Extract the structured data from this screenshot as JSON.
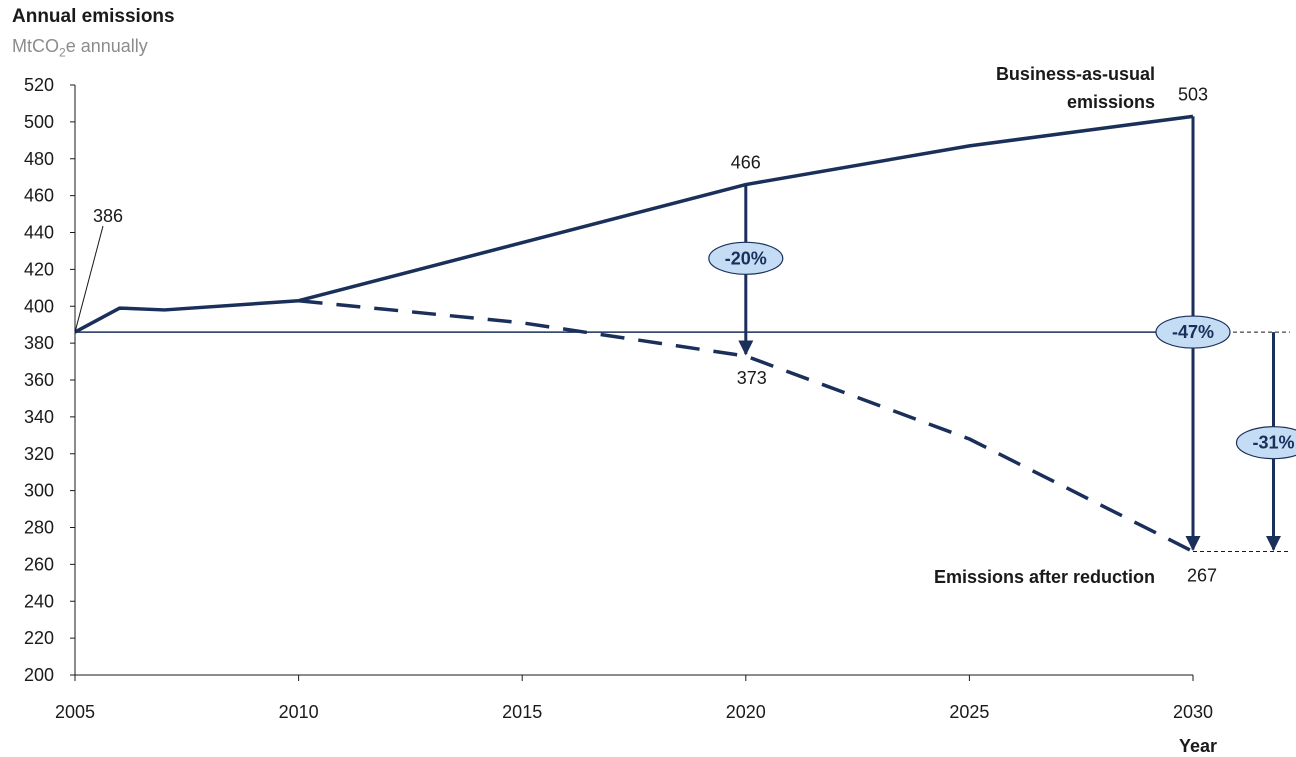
{
  "chart_data": {
    "type": "line",
    "title": "Annual emissions",
    "subtitle_main": "MtCO",
    "subtitle_sub": "2",
    "subtitle_rest": "e annually",
    "xlabel": "Year",
    "ylabel": "",
    "xlim": [
      2005,
      2030
    ],
    "ylim": [
      200,
      520
    ],
    "x_ticks": [
      2005,
      2010,
      2015,
      2020,
      2025,
      2030
    ],
    "y_ticks": [
      200,
      220,
      240,
      260,
      280,
      300,
      320,
      340,
      360,
      380,
      400,
      420,
      440,
      460,
      480,
      500,
      520
    ],
    "grid": false,
    "colors": {
      "line": "#1a2f5a",
      "badge_fill": "#c5dcf5",
      "badge_stroke": "#1a2f5a"
    },
    "baseline": {
      "y": 386
    },
    "series": [
      {
        "name": "Business-as-usual emissions",
        "name_lines": [
          "Business-as-usual",
          "emissions"
        ],
        "style": "solid",
        "x": [
          2005,
          2006,
          2007,
          2010,
          2020,
          2025,
          2030
        ],
        "y": [
          386,
          399,
          398,
          403,
          466,
          487,
          503
        ]
      },
      {
        "name": "Emissions after reduction",
        "name_lines": [
          "Emissions after reduction"
        ],
        "style": "dashed",
        "x": [
          2010,
          2015,
          2017.5,
          2020,
          2025,
          2030
        ],
        "y": [
          403,
          391,
          382,
          373,
          328,
          267
        ]
      }
    ],
    "point_labels": [
      {
        "x": 2005,
        "y": 386,
        "text": "386"
      },
      {
        "x": 2020,
        "y": 466,
        "text": "466"
      },
      {
        "x": 2020,
        "y": 373,
        "text": "373"
      },
      {
        "x": 2030,
        "y": 503,
        "text": "503"
      },
      {
        "x": 2030,
        "y": 267,
        "text": "267"
      }
    ],
    "annotations": [
      {
        "text": "-20%",
        "x": 2020,
        "from": 466,
        "to": 373,
        "badge_y": 426
      },
      {
        "text": "-47%",
        "x": 2030,
        "from": 503,
        "to": 267,
        "badge_y": 386
      },
      {
        "text": "-31%",
        "x": 2031.8,
        "from": 386,
        "to": 267,
        "badge_y": 326
      }
    ]
  }
}
